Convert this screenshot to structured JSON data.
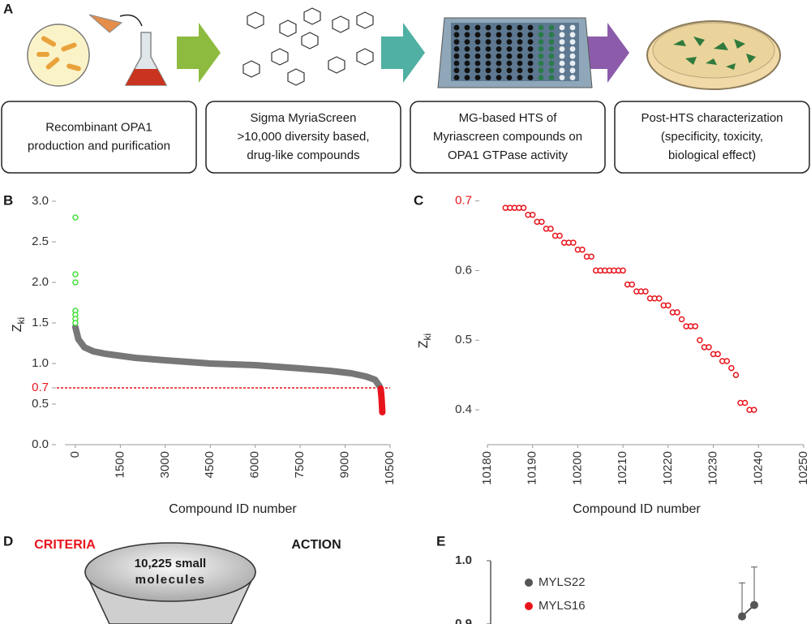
{
  "panel_labels": [
    "A",
    "B",
    "C",
    "D",
    "E"
  ],
  "steps": [
    [
      "Recombinant OPA1",
      "production and purification"
    ],
    [
      "Sigma MyriaScreen",
      ">10,000 diversity based,",
      "drug-like compounds"
    ],
    [
      "MG-based HTS of",
      "Myriascreen compounds on",
      "OPA1 GTPase activity"
    ],
    [
      "Post-HTS characterization",
      "(specificity, toxicity,",
      "biological effect)"
    ]
  ],
  "chart_data": [
    {
      "type": "scatter",
      "xlabel": "Compound ID number",
      "ylabel": "Z",
      "ylabel_subscript": "ki",
      "xlim": [
        -350,
        10500
      ],
      "ylim": [
        0,
        3
      ],
      "xticks": [
        0,
        1500,
        3000,
        4500,
        6000,
        7500,
        9000,
        10500
      ],
      "yticks": [
        {
          "value": 0,
          "label": "0.0"
        },
        0.5,
        0.7,
        {
          "value": 1,
          "label": "1.0"
        },
        1.5,
        {
          "value": 2,
          "label": "2.0"
        },
        2.5,
        {
          "value": 3,
          "label": "3.0"
        }
      ],
      "highlight_tick": 0.7,
      "highlight_color": "#e8141c",
      "threshold": 0.7,
      "series": [
        {
          "mode": "band",
          "color": "#777777",
          "x": [
            0,
            100,
            300,
            600,
            1000,
            2000,
            3000,
            4500,
            6000,
            7500,
            8500,
            9200,
            9700,
            10000,
            10150
          ],
          "values": [
            1.45,
            1.3,
            1.2,
            1.15,
            1.12,
            1.07,
            1.04,
            1.0,
            0.98,
            0.94,
            0.91,
            0.88,
            0.84,
            0.8,
            0.72
          ]
        },
        {
          "mode": "markers",
          "color": "#44e03c",
          "x": [
            0,
            0,
            0,
            0,
            0,
            0,
            0
          ],
          "values": [
            2.8,
            2.1,
            2.0,
            1.65,
            1.6,
            1.55,
            1.5
          ]
        },
        {
          "mode": "band",
          "color": "#e8141c",
          "x": [
            10185,
            10210,
            10235,
            10240
          ],
          "values": [
            0.69,
            0.6,
            0.45,
            0.4
          ]
        }
      ]
    },
    {
      "type": "scatter",
      "xlabel": "Compound ID number",
      "ylabel": "Z",
      "ylabel_subscript": "ki",
      "xlim": [
        10180,
        10250
      ],
      "ylim": [
        0.35,
        0.71
      ],
      "xticks": [
        10180,
        10190,
        10200,
        10210,
        10220,
        10230,
        10240,
        10250
      ],
      "yticks": [
        0.4,
        0.5,
        0.6,
        0.7
      ],
      "highlight_tick": 0.7,
      "highlight_color": "#e8141c",
      "series": [
        {
          "mode": "markers",
          "color": "#e8141c",
          "x": [
            10184,
            10185,
            10186,
            10187,
            10188,
            10189,
            10190,
            10191,
            10192,
            10193,
            10194,
            10195,
            10196,
            10197,
            10198,
            10199,
            10200,
            10201,
            10202,
            10203,
            10204,
            10205,
            10206,
            10207,
            10208,
            10209,
            10210,
            10211,
            10212,
            10213,
            10214,
            10215,
            10216,
            10217,
            10218,
            10219,
            10220,
            10221,
            10222,
            10223,
            10224,
            10225,
            10226,
            10227,
            10228,
            10229,
            10230,
            10231,
            10232,
            10233,
            10234,
            10235,
            10236,
            10237,
            10238,
            10239
          ],
          "values": [
            0.69,
            0.69,
            0.69,
            0.69,
            0.69,
            0.68,
            0.68,
            0.67,
            0.67,
            0.66,
            0.66,
            0.65,
            0.65,
            0.64,
            0.64,
            0.64,
            0.63,
            0.63,
            0.62,
            0.62,
            0.6,
            0.6,
            0.6,
            0.6,
            0.6,
            0.6,
            0.6,
            0.58,
            0.58,
            0.57,
            0.57,
            0.57,
            0.56,
            0.56,
            0.56,
            0.55,
            0.55,
            0.54,
            0.54,
            0.53,
            0.52,
            0.52,
            0.52,
            0.5,
            0.49,
            0.49,
            0.48,
            0.48,
            0.47,
            0.47,
            0.46,
            0.45,
            0.41,
            0.41,
            0.4,
            0.4
          ]
        }
      ]
    },
    {
      "type": "errorbar",
      "ylim": [
        0.9,
        1.0
      ],
      "yticks": [
        {
          "value": 1,
          "label": "1.0"
        },
        0.9
      ],
      "series": [
        {
          "name": "MYLS22",
          "color": "#555555",
          "values": [
            0.912,
            0.93
          ],
          "errors": [
            0.053,
            0.06
          ]
        },
        {
          "name": "MYLS16",
          "color": "#e8141c",
          "values": [],
          "errors": []
        }
      ]
    }
  ],
  "funnel": {
    "criteria": "CRITERIA",
    "action": "ACTION",
    "top_text": [
      "10,225 small",
      "molecules"
    ]
  }
}
